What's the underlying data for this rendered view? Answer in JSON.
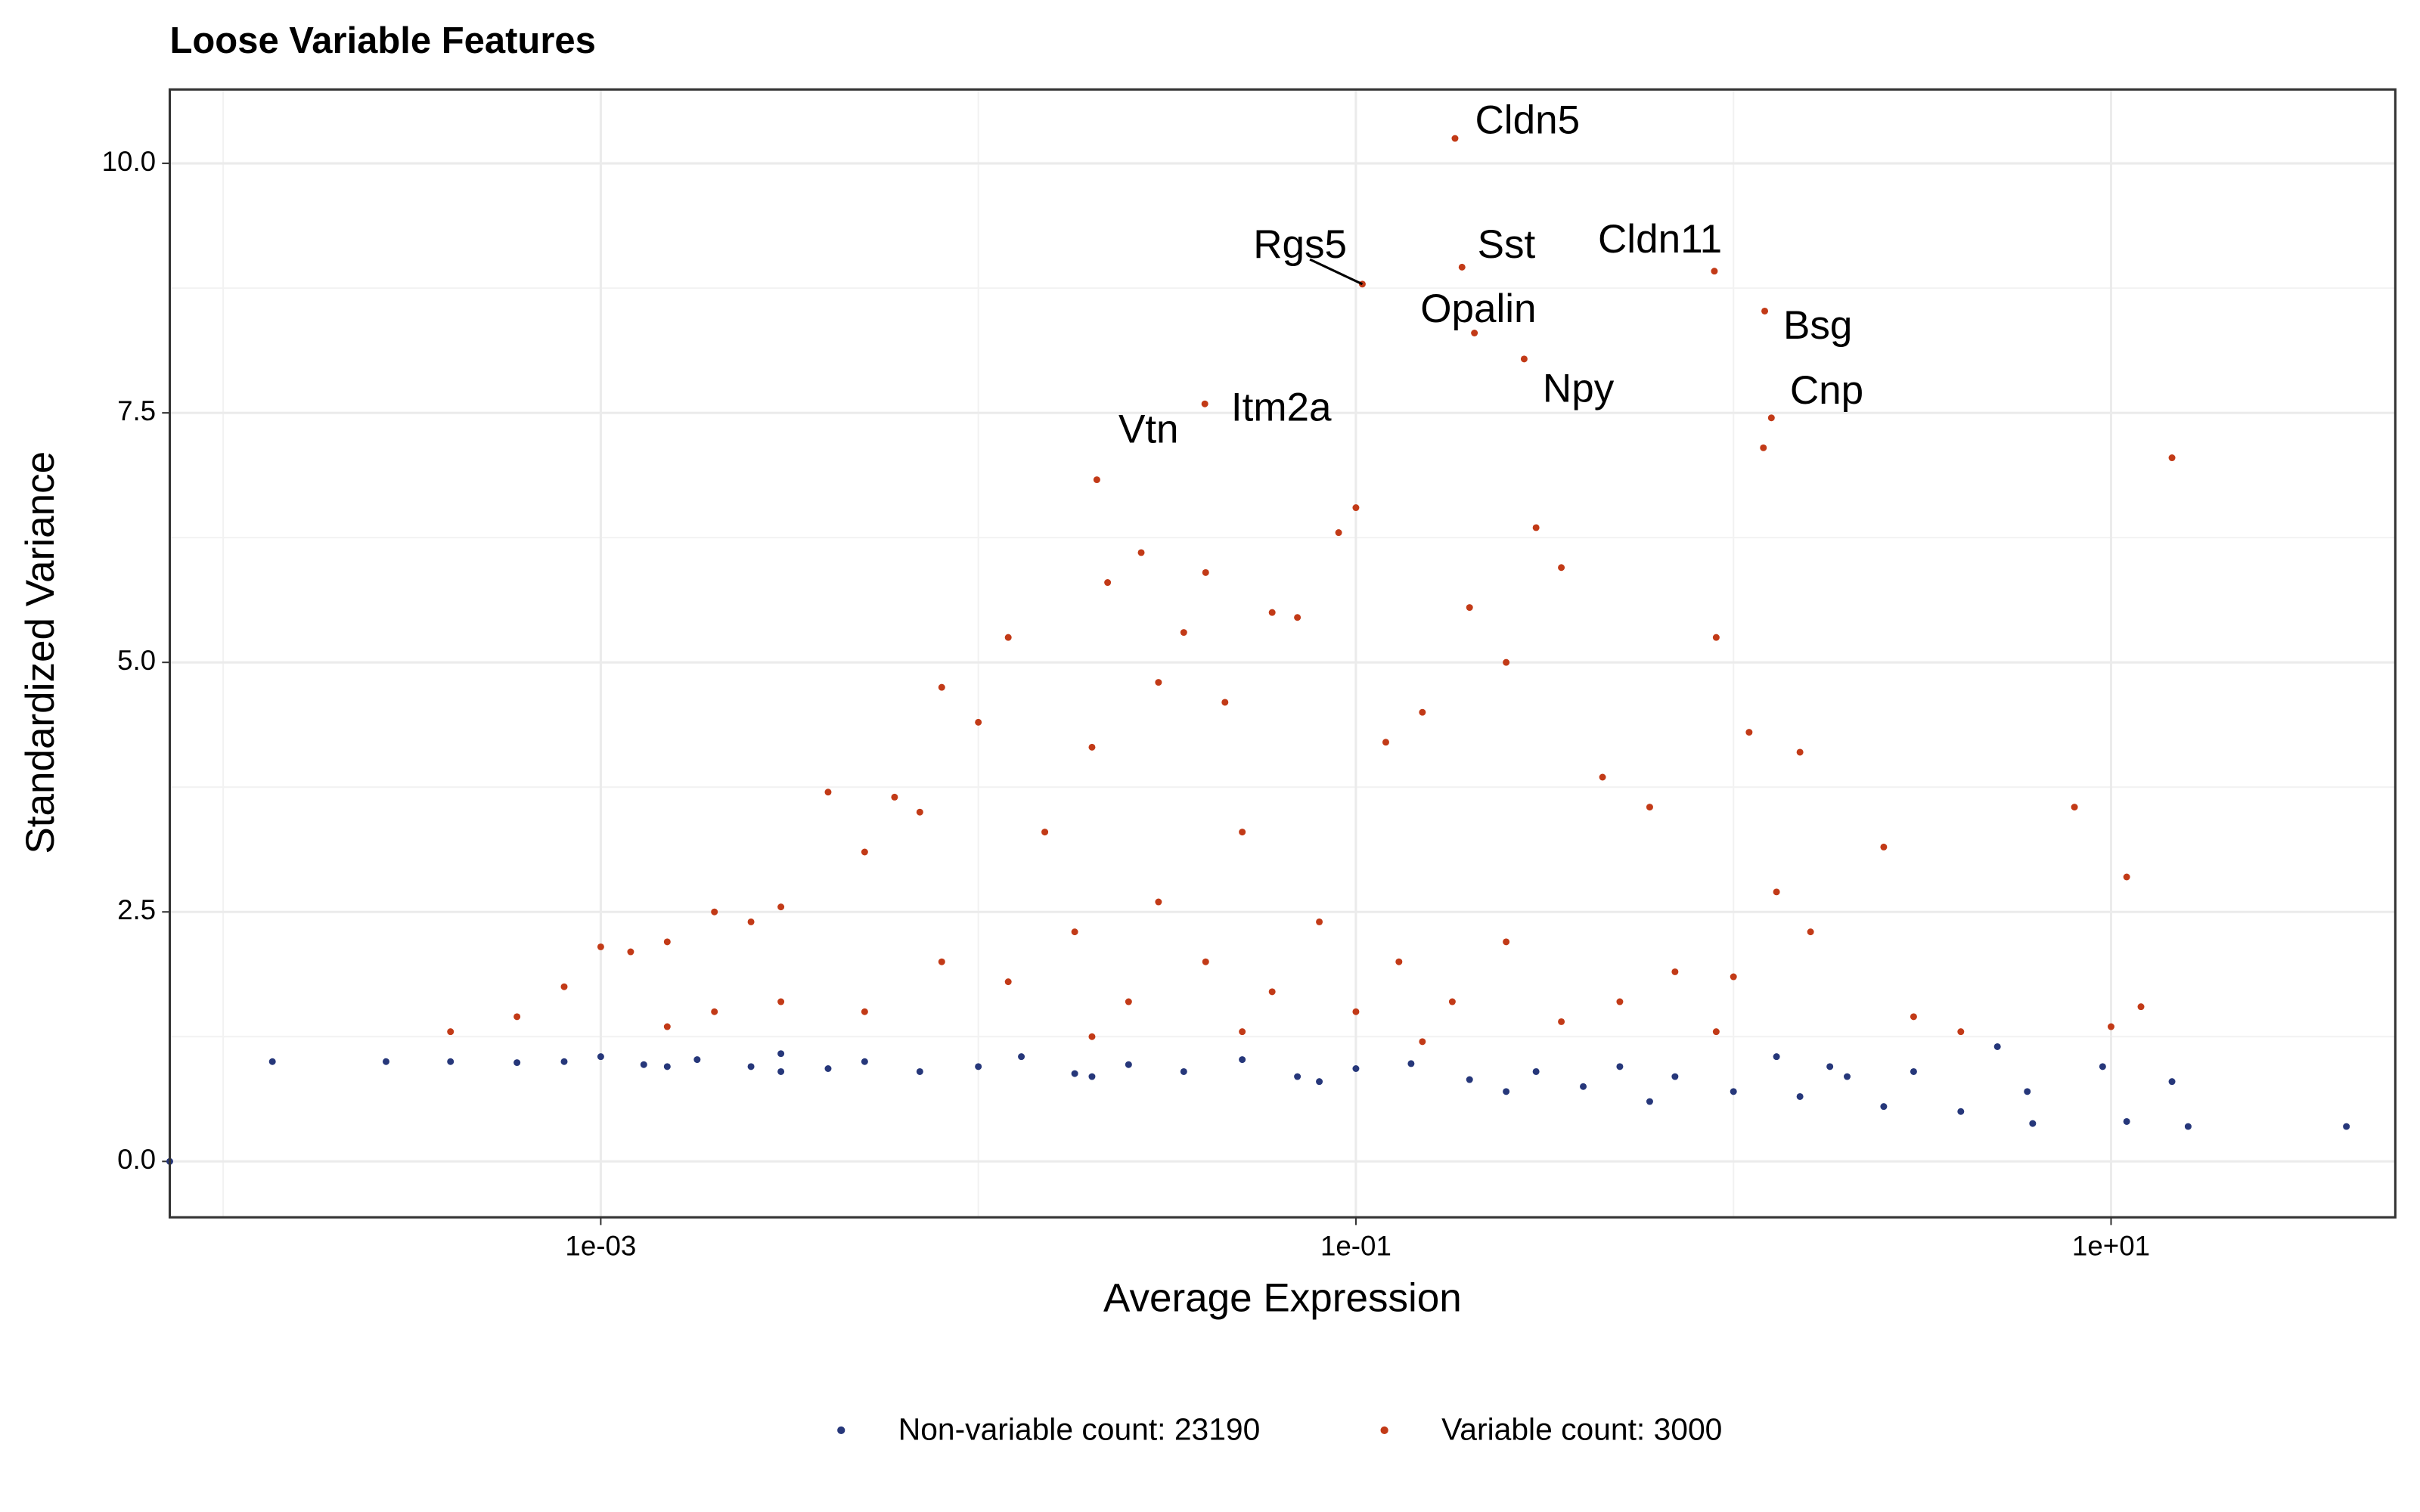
{
  "chart_data": {
    "type": "scatter",
    "title": "Loose Variable Features",
    "x_label": "Average Expression",
    "y_label": "Standardized Variance",
    "xscale": "log",
    "xlim": [
      7.22e-05,
      56.6
    ],
    "ylim": [
      -0.56,
      10.74
    ],
    "xticks": [
      {
        "value": 0.001,
        "label": "1e-03"
      },
      {
        "value": 0.1,
        "label": "1e-01"
      },
      {
        "value": 10,
        "label": "1e+01"
      }
    ],
    "yticks": [
      {
        "value": 0,
        "label": "0.0"
      },
      {
        "value": 2.5,
        "label": "2.5"
      },
      {
        "value": 5,
        "label": "5.0"
      },
      {
        "value": 7.5,
        "label": "7.5"
      },
      {
        "value": 10,
        "label": "10.0"
      }
    ],
    "xminor": [
      0.0001,
      0.01,
      1
    ],
    "yminor": [
      1.25,
      3.75,
      6.25,
      8.75
    ],
    "grid": true,
    "legend": "bottom",
    "series": [
      {
        "name": "Non-variable count: 23190",
        "color": "#26377a",
        "x": [
          7.22e-05,
          0.000135,
          0.00027,
          0.0004,
          0.0006,
          0.0008,
          0.001,
          0.0013,
          0.0018,
          0.0025,
          0.003,
          0.004,
          0.005,
          0.007,
          0.01,
          0.013,
          0.018,
          0.025,
          0.035,
          0.05,
          0.07,
          0.1,
          0.14,
          0.2,
          0.3,
          0.4,
          0.5,
          0.7,
          1.0,
          1.3,
          1.5,
          2,
          2.5,
          3,
          4,
          5,
          6,
          6.2,
          9.5,
          11,
          16,
          14.5,
          42,
          1.8,
          0.6,
          0.25,
          0.08,
          0.02,
          0.003,
          0.0015
        ],
        "y": [
          0,
          1.0,
          1.0,
          1.0,
          0.99,
          1.0,
          1.05,
          0.97,
          1.02,
          0.95,
          1.08,
          0.93,
          1.0,
          0.9,
          0.95,
          1.05,
          0.88,
          0.97,
          0.9,
          1.02,
          0.85,
          0.93,
          0.98,
          0.82,
          0.9,
          0.75,
          0.95,
          0.85,
          0.7,
          1.05,
          0.65,
          0.85,
          0.55,
          0.9,
          0.5,
          1.15,
          0.7,
          0.38,
          0.95,
          0.4,
          0.35,
          0.8,
          0.35,
          0.95,
          0.6,
          0.7,
          0.8,
          0.85,
          0.9,
          0.95
        ]
      },
      {
        "name": "Variable count: 3000",
        "color": "#c23a17",
        "x": [
          0.0004,
          0.0006,
          0.0008,
          0.001,
          0.0012,
          0.0015,
          0.002,
          0.0025,
          0.003,
          0.004,
          0.005,
          0.006,
          0.007,
          0.008,
          0.01,
          0.012,
          0.015,
          0.02,
          0.022,
          0.027,
          0.03,
          0.035,
          0.04,
          0.045,
          0.05,
          0.06,
          0.07,
          0.09,
          0.1,
          0.12,
          0.15,
          0.2,
          0.25,
          0.3,
          0.35,
          0.45,
          0.6,
          0.9,
          1.1,
          1.2,
          1.5,
          2.5,
          8,
          11,
          12,
          14.5,
          10,
          1.3,
          1.6,
          3,
          4,
          0.005,
          0.008,
          0.012,
          0.018,
          0.025,
          0.03,
          0.04,
          0.06,
          0.08,
          0.1,
          0.13,
          0.18,
          0.25,
          0.35,
          0.5,
          0.7,
          0.9,
          1.0,
          0.003,
          0.002,
          0.0015,
          0.02,
          0.05,
          0.15
        ],
        "y": [
          1.3,
          1.45,
          1.75,
          2.15,
          2.1,
          2.2,
          2.5,
          2.4,
          2.55,
          3.7,
          3.1,
          3.65,
          3.5,
          4.75,
          4.4,
          5.25,
          3.3,
          4.15,
          5.8,
          6.1,
          4.8,
          5.3,
          5.9,
          4.6,
          3.3,
          5.5,
          5.45,
          6.3,
          6.55,
          4.2,
          4.5,
          5.55,
          5.0,
          6.35,
          5.95,
          3.85,
          3.55,
          5.25,
          4.3,
          7.15,
          4.1,
          3.15,
          3.55,
          2.85,
          1.55,
          7.05,
          1.35,
          2.7,
          2.3,
          1.45,
          1.3,
          1.5,
          2.0,
          1.8,
          2.3,
          1.6,
          2.6,
          2.0,
          1.7,
          2.4,
          1.5,
          2.0,
          1.6,
          2.2,
          1.4,
          1.6,
          1.9,
          1.3,
          1.85,
          1.6,
          1.5,
          1.35,
          1.25,
          1.3,
          1.2
        ]
      }
    ],
    "annotations": [
      {
        "text": "Cldn5",
        "x": 0.183,
        "y": 10.25
      },
      {
        "text": "Rgs5",
        "x": 0.104,
        "y": 8.79
      },
      {
        "text": "Sst",
        "x": 0.191,
        "y": 8.96
      },
      {
        "text": "Cldn11",
        "x": 0.89,
        "y": 8.92
      },
      {
        "text": "Opalin",
        "x": 0.206,
        "y": 8.3
      },
      {
        "text": "Bsg",
        "x": 1.21,
        "y": 8.52
      },
      {
        "text": "Npy",
        "x": 0.279,
        "y": 8.04
      },
      {
        "text": "Cnp",
        "x": 1.26,
        "y": 7.45
      },
      {
        "text": "Itm2a",
        "x": 0.0398,
        "y": 7.59
      },
      {
        "text": "Vtn",
        "x": 0.0206,
        "y": 6.83
      }
    ]
  }
}
